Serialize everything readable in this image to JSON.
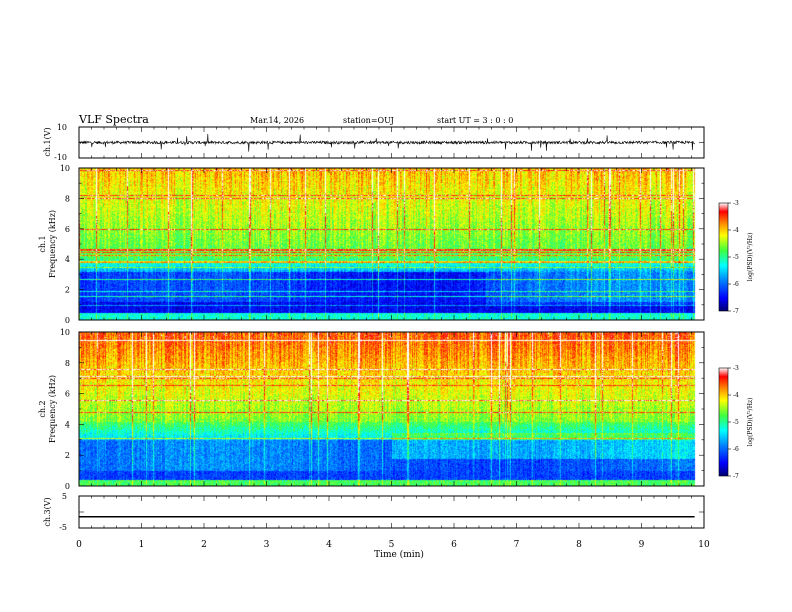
{
  "header": {
    "title": "VLF Spectra",
    "date": "Mar.14, 2026",
    "station": "station=OUJ",
    "start_ut": "start  UT =  3 : 0  : 0"
  },
  "colors": {
    "spectral_scale": [
      "#000070",
      "#0000ff",
      "#0080ff",
      "#00ffff",
      "#40ff40",
      "#ffff00",
      "#ff8000",
      "#ff0000",
      "#ffffff"
    ],
    "trace": "#000000"
  },
  "chart_data": [
    {
      "id": "ch1_waveform",
      "type": "line",
      "ylabel": "ch.1(V)",
      "ylim": [
        -10,
        10
      ],
      "yticks": [
        "10",
        "-10"
      ],
      "xlim": [
        0,
        10
      ],
      "description_values": {
        "baseline_v": 0,
        "typical_amplitude_v": 1.5,
        "spike_amplitude_v": 6
      }
    },
    {
      "id": "ch1_spectrogram",
      "type": "heatmap",
      "ylabel_line1": "ch.1",
      "ylabel_line2": "Frequency (kHz)",
      "ylim": [
        0,
        10
      ],
      "yticks": [
        "0",
        "2",
        "4",
        "6",
        "8",
        "10"
      ],
      "xlim": [
        0,
        10
      ],
      "data_end_min": 9.85,
      "colorbar": {
        "label": "log(PSD)(V²/Hz)",
        "range": [
          -7,
          -3
        ],
        "ticks": [
          "-3",
          "-4",
          "-5",
          "-6",
          "-7"
        ]
      }
    },
    {
      "id": "ch2_spectrogram",
      "type": "heatmap",
      "ylabel_line1": "ch.2",
      "ylabel_line2": "Frequency (kHz)",
      "ylim": [
        0,
        10
      ],
      "yticks": [
        "0",
        "2",
        "4",
        "6",
        "8",
        "10"
      ],
      "xlim": [
        0,
        10
      ],
      "data_end_min": 9.85,
      "colorbar": {
        "label": "log(PSD)(V²/Hz)",
        "range": [
          -7,
          -3
        ],
        "ticks": [
          "-3",
          "-4",
          "-5",
          "-6",
          "-7"
        ]
      }
    },
    {
      "id": "ch3_waveform",
      "type": "line",
      "ylabel": "ch.3(V)",
      "ylim": [
        -5,
        5
      ],
      "yticks": [
        "5",
        "0",
        "-5"
      ],
      "x": [
        0,
        9.85
      ],
      "y": [
        -1.5,
        -1.5
      ],
      "xlim": [
        0,
        10
      ]
    }
  ],
  "xaxis": {
    "label": "Time (min)",
    "ticks": [
      "0",
      "1",
      "2",
      "3",
      "4",
      "5",
      "6",
      "7",
      "8",
      "9",
      "10"
    ]
  }
}
